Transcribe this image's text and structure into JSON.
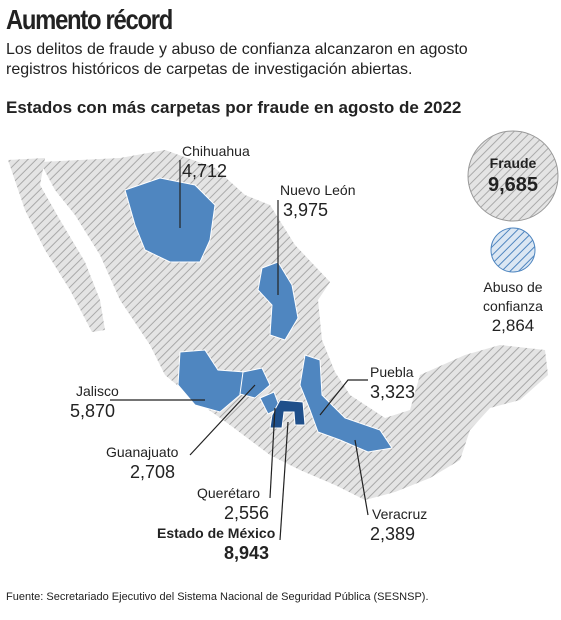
{
  "header": {
    "title": "Aumento récord",
    "subtitle": "Los delitos de fraude y abuso de confianza alcanzaron en agosto registros históricos de carpetas de investigación abiertas."
  },
  "map": {
    "title": "Estados con más carpetas por fraude en agosto de 2022",
    "states": [
      {
        "name": "Chihuahua",
        "value": "4,712"
      },
      {
        "name": "Nuevo León",
        "value": "3,975"
      },
      {
        "name": "Puebla",
        "value": "3,323"
      },
      {
        "name": "Jalisco",
        "value": "5,870"
      },
      {
        "name": "Guanajuato",
        "value": "2,708"
      },
      {
        "name": "Querétaro",
        "value": "2,556"
      },
      {
        "name": "Estado de México",
        "value": "8,943"
      },
      {
        "name": "Veracruz",
        "value": "2,389"
      }
    ],
    "legend": [
      {
        "label": "Fraude",
        "value": "9,685"
      },
      {
        "label": "Abuso de confianza",
        "value": "2,864"
      }
    ]
  },
  "source": "Fuente: Secretariado Ejecutivo del Sistema Nacional de Seguridad Pública (SESNSP)."
}
